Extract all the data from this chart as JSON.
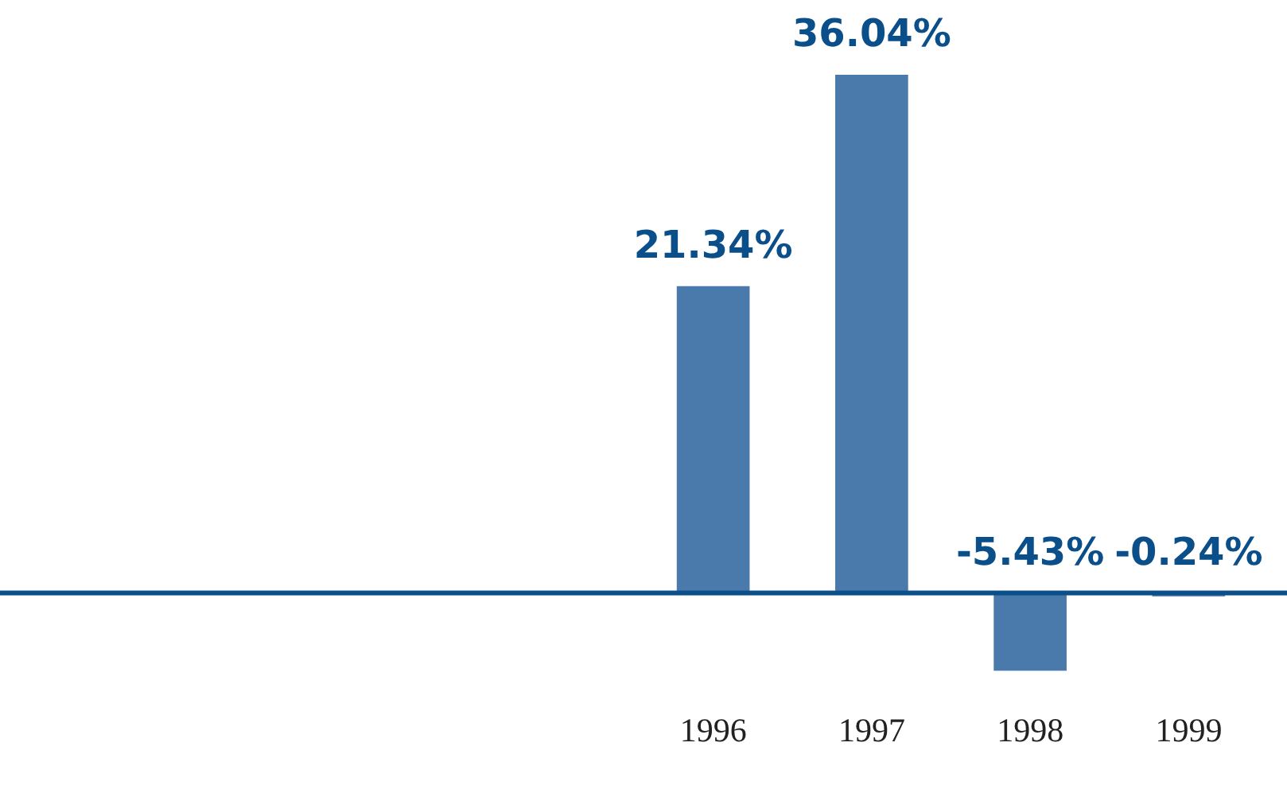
{
  "chart_data": {
    "type": "bar",
    "categories": [
      null,
      null,
      null,
      null,
      "1996",
      "1997",
      "1998",
      "1999"
    ],
    "values": [
      null,
      null,
      null,
      null,
      21.34,
      36.04,
      -5.43,
      -0.24
    ],
    "color": "#4a7aab",
    "value_labels": [
      null,
      null,
      null,
      null,
      "21.34%",
      "36.04%",
      "-5.43%",
      "-0.24%"
    ],
    "ref_lines": [
      {
        "axis": "y",
        "value": 0,
        "color": "#0b4f8a"
      }
    ],
    "grid": false,
    "legend": false,
    "tick_labels": "x"
  }
}
